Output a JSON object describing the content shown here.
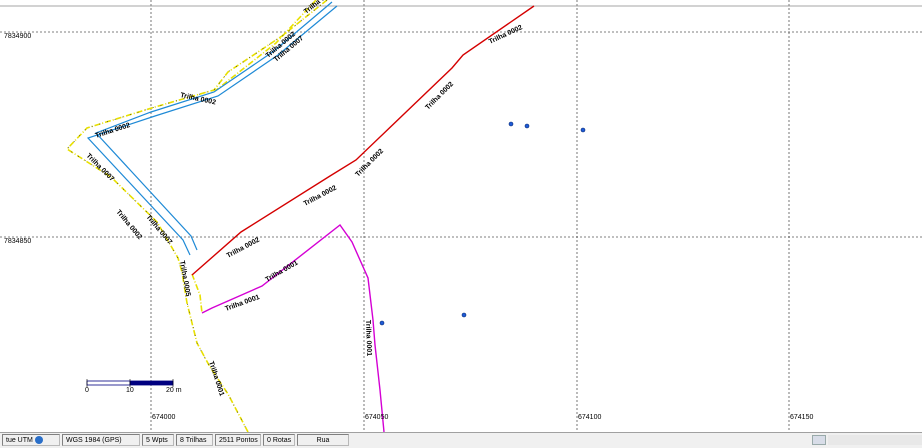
{
  "map": {
    "grid_labels_y": [
      "7834900",
      "7834850"
    ],
    "grid_labels_x": [
      "674000",
      "674050",
      "674100",
      "674150"
    ],
    "scale_bar": {
      "labels": [
        "0",
        "10",
        "20 m"
      ]
    },
    "track_labels": {
      "t2": "Trilha 0002",
      "t7": "Trilha 0007",
      "t1": "Trilha 0001",
      "t5": "Trilha 0005",
      "t2b": "Trilha 0002"
    },
    "colors": {
      "trilha_0002": "#d40000",
      "trilha_0007": "#1f8ad6",
      "trilha_0001": "#d400d4",
      "trilha_yellow": "#e8e000",
      "waypoint": "#1f5bd6"
    }
  },
  "statusbar": {
    "projection": "tue UTM",
    "datum": "WGS 1984 (GPS)",
    "wpts": "5 Wpts",
    "trilhas": "8 Trilhas",
    "pontos": "2511 Pontos",
    "rotas": "0 Rotas",
    "mode": "Rua"
  }
}
